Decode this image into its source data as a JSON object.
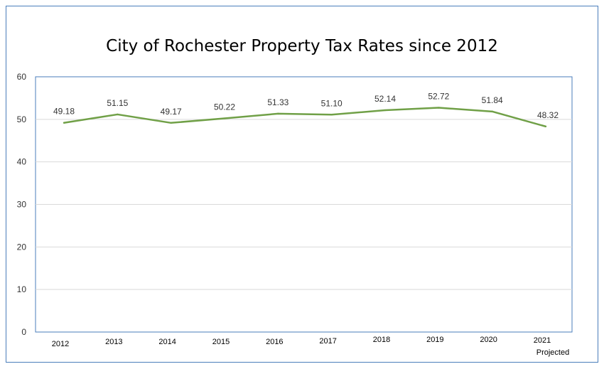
{
  "chart_data": {
    "type": "line",
    "title": "City of Rochester Property Tax Rates since 2012",
    "categories": [
      "2012",
      "2013",
      "2014",
      "2015",
      "2016",
      "2017",
      "2018",
      "2019",
      "2020",
      "2021\nProjected"
    ],
    "series": [
      {
        "values": [
          49.18,
          51.15,
          49.17,
          50.22,
          51.33,
          51.1,
          52.14,
          52.72,
          51.84,
          48.32
        ],
        "labels": [
          "49.18",
          "51.15",
          "49.17",
          "50.22",
          "51.33",
          "51.10",
          "52.14",
          "52.72",
          "51.84",
          "48.32"
        ],
        "color": "#70a047"
      }
    ],
    "ylim": [
      0,
      60
    ],
    "yticks": [
      "0",
      "10",
      "20",
      "30",
      "40",
      "50",
      "60"
    ],
    "grid": true,
    "legend": "none",
    "xlabel": "",
    "ylabel": ""
  }
}
